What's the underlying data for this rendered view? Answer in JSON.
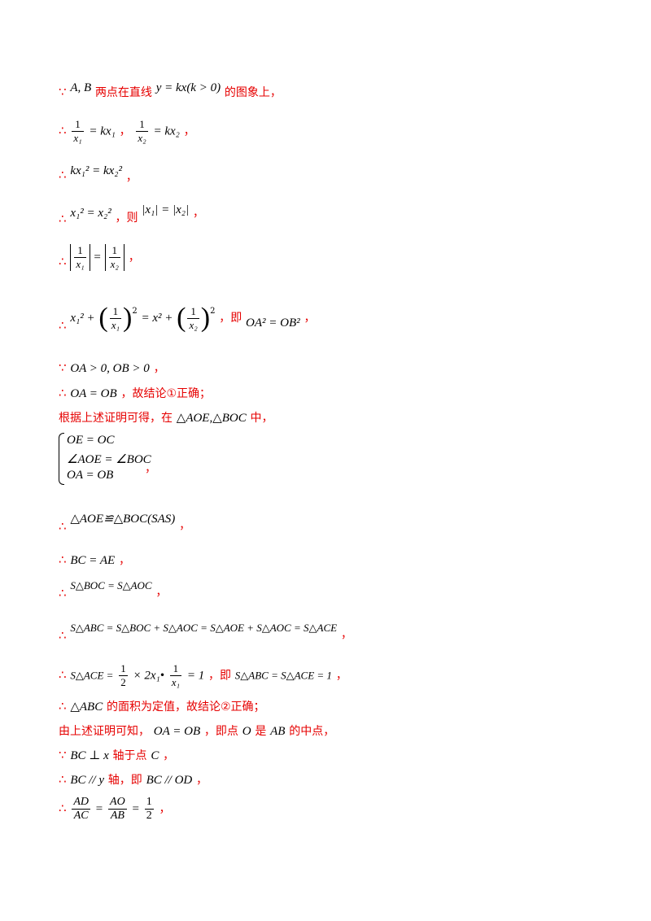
{
  "symbols": {
    "because": "∵",
    "therefore": "∴"
  },
  "lines": {
    "l1": {
      "m1": "A, B",
      "t1": "两点在直线",
      "m2": "y = kx(k > 0)",
      "t2": "的图象上，"
    },
    "l2": {
      "lhs1": "1",
      "den1": "x₁",
      "m1": "= kx₁",
      "sep": "，",
      "lhs2": "1",
      "den2": "x₂",
      "m2": "= kx₂",
      "end": "，"
    },
    "l3": {
      "m": "kx₁² = kx₂²",
      "end": "，"
    },
    "l4": {
      "m1": "x₁² = x₂²",
      "t": "，则",
      "m2": "|x₁| = |x₂|",
      "end": "，"
    },
    "l5": {
      "num": "1",
      "den1": "x₁",
      "eq": "=",
      "den2": "x₂",
      "end": "，"
    },
    "l6": {
      "m1": "x₁² +",
      "num": "1",
      "den1": "x₁",
      "m2": "= x² +",
      "den2": "x₂",
      "t": "，即",
      "m3": "OA² = OB²",
      "end": "，"
    },
    "l7": {
      "m": "OA > 0, OB > 0",
      "end": "，"
    },
    "l8": {
      "m": "OA = OB",
      "t": "，故结论①正确；"
    },
    "l9": {
      "t1": "根据上述证明可得，在",
      "m": "△AOE,△BOC",
      "t2": "中，"
    },
    "l10": {
      "r1": "OE = OC",
      "r2": "∠AOE = ∠BOC",
      "r3": "OA = OB",
      "end": "，"
    },
    "l11": {
      "m": "△AOE≌△BOC(SAS)",
      "end": "，"
    },
    "l12": {
      "m": "BC = AE",
      "end": "，"
    },
    "l13": {
      "m": "S△BOC = S△AOC",
      "end": "，"
    },
    "l14": {
      "m": "S△ABC = S△BOC + S△AOC = S△AOE + S△AOC = S△ACE",
      "end": "，"
    },
    "l15": {
      "m1": "S△ACE =",
      "n1": "1",
      "d1": "2",
      "m2": "× 2x₁•",
      "n2": "1",
      "d2": "x₁",
      "m3": "= 1",
      "t": "，即",
      "m4": "S△ABC = S△ACE = 1",
      "end": "，"
    },
    "l16": {
      "m": "△ABC",
      "t": "的面积为定值，故结论②正确；"
    },
    "l17": {
      "t1": "由上述证明可知，",
      "m1": "OA = OB",
      "t2": "，即点",
      "m2": "O",
      "t3": "是",
      "m3": "AB",
      "t4": "的中点，"
    },
    "l18": {
      "m1": "BC ⊥ x",
      "t1": "轴于点",
      "m2": "C",
      "end": "，"
    },
    "l19": {
      "m1": "BC // y",
      "t1": "轴，即",
      "m2": "BC // OD",
      "end": "，"
    },
    "l20": {
      "n1": "AD",
      "d1": "AC",
      "n2": "AO",
      "d2": "AB",
      "n3": "1",
      "d3": "2",
      "eq": "=",
      "end": "，"
    }
  }
}
